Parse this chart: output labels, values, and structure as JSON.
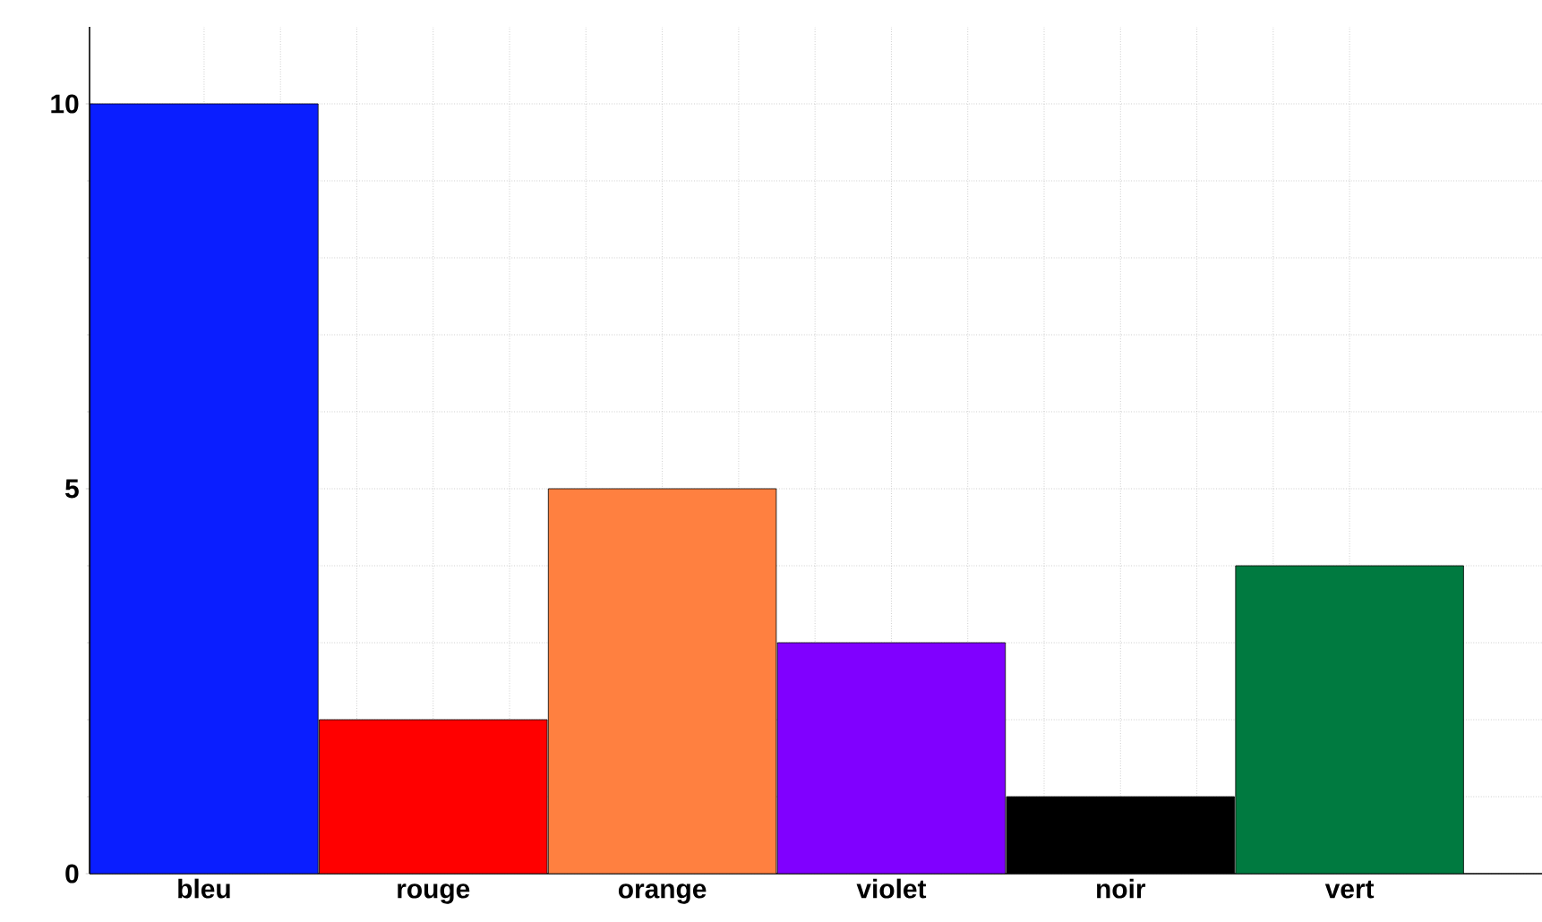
{
  "chart_data": {
    "type": "bar",
    "categories": [
      "bleu",
      "rouge",
      "orange",
      "violet",
      "noir",
      "vert"
    ],
    "values": [
      10,
      2,
      5,
      3,
      1,
      4
    ],
    "colors": [
      "#0a1eff",
      "#ff0000",
      "#ff8040",
      "#8000ff",
      "#000000",
      "#007a40"
    ],
    "ylim": [
      0,
      11
    ],
    "yticks": [
      0,
      5,
      10
    ],
    "grid": true
  }
}
